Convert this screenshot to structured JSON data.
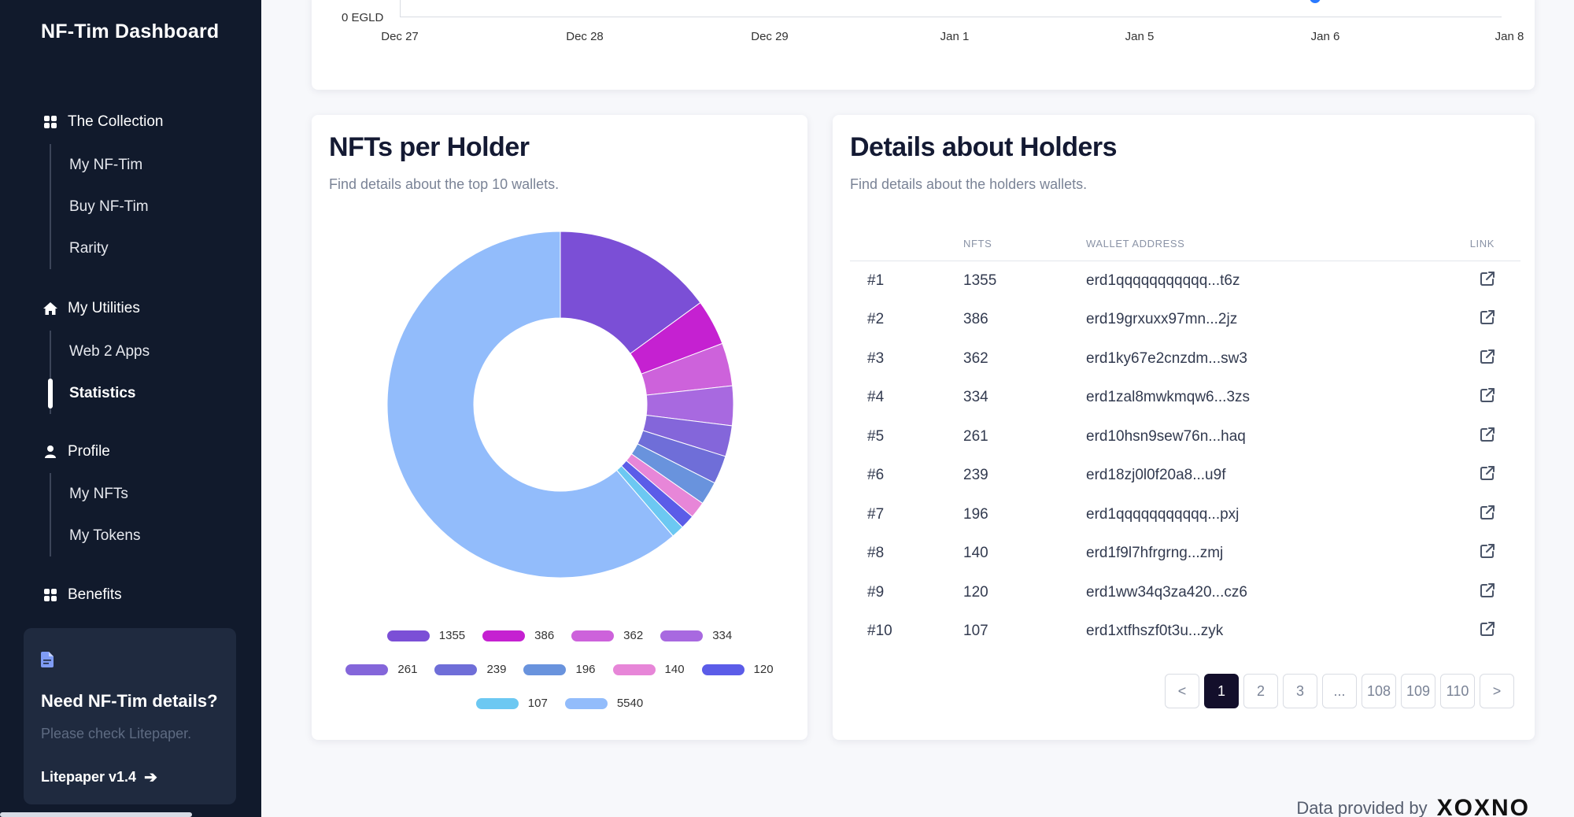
{
  "sidebar": {
    "brand": "NF-Tim Dashboard",
    "sections": [
      {
        "label": "The Collection",
        "icon": "grid-icon",
        "items": [
          "My NF-Tim",
          "Buy NF-Tim",
          "Rarity"
        ]
      },
      {
        "label": "My Utilities",
        "icon": "home-icon",
        "items": [
          "Web 2 Apps",
          "Statistics"
        ]
      },
      {
        "label": "Profile",
        "icon": "user-icon",
        "items": [
          "My NFTs",
          "My Tokens"
        ]
      },
      {
        "label": "Benefits",
        "icon": "grid-icon",
        "items": []
      }
    ],
    "active_item": "Statistics",
    "promo": {
      "title": "Need NF-Tim details?",
      "subtitle": "Please check Litepaper.",
      "link": "Litepaper v1.4"
    }
  },
  "top_chart": {
    "y_label": "0 EGLD",
    "x_ticks": [
      "Dec 27",
      "Dec 28",
      "Dec 29",
      "Jan 1",
      "Jan 5",
      "Jan 6",
      "Jan 8"
    ]
  },
  "pie_card": {
    "title": "NFTs per Holder",
    "subtitle": "Find details about the top 10 wallets."
  },
  "chart_data": {
    "type": "pie",
    "categories": [
      "1355",
      "386",
      "362",
      "334",
      "261",
      "239",
      "196",
      "140",
      "120",
      "107",
      "5540"
    ],
    "values": [
      1355,
      386,
      362,
      334,
      261,
      239,
      196,
      140,
      120,
      107,
      5540
    ],
    "colors": [
      "#7b4fd6",
      "#c521d1",
      "#cd62db",
      "#a869e0",
      "#8466da",
      "#6f6ed8",
      "#6993dd",
      "#e786d8",
      "#5b5ce8",
      "#6cc8f2",
      "#92bcfb"
    ],
    "legend": "bottom"
  },
  "table_card": {
    "title": "Details about Holders",
    "subtitle": "Find details about the holders wallets.",
    "headers": [
      "",
      "NFTS",
      "WALLET ADDRESS",
      "LINK"
    ],
    "rows": [
      {
        "rank": "#1",
        "nfts": "1355",
        "wallet": "erd1qqqqqqqqqqq...t6z"
      },
      {
        "rank": "#2",
        "nfts": "386",
        "wallet": "erd19grxuxx97mn...2jz"
      },
      {
        "rank": "#3",
        "nfts": "362",
        "wallet": "erd1ky67e2cnzdm...sw3"
      },
      {
        "rank": "#4",
        "nfts": "334",
        "wallet": "erd1zal8mwkmqw6...3zs"
      },
      {
        "rank": "#5",
        "nfts": "261",
        "wallet": "erd10hsn9sew76n...haq"
      },
      {
        "rank": "#6",
        "nfts": "239",
        "wallet": "erd18zj0l0f20a8...u9f"
      },
      {
        "rank": "#7",
        "nfts": "196",
        "wallet": "erd1qqqqqqqqqqq...pxj"
      },
      {
        "rank": "#8",
        "nfts": "140",
        "wallet": "erd1f9l7hfrgrng...zmj"
      },
      {
        "rank": "#9",
        "nfts": "120",
        "wallet": "erd1ww34q3za420...cz6"
      },
      {
        "rank": "#10",
        "nfts": "107",
        "wallet": "erd1xtfhszf0t3u...zyk"
      }
    ],
    "pagination": [
      "<",
      "1",
      "2",
      "3",
      "...",
      "108",
      "109",
      "110",
      ">"
    ],
    "current_page": "1"
  },
  "footer": {
    "text": "Data provided by",
    "logo": "XOXNO"
  }
}
